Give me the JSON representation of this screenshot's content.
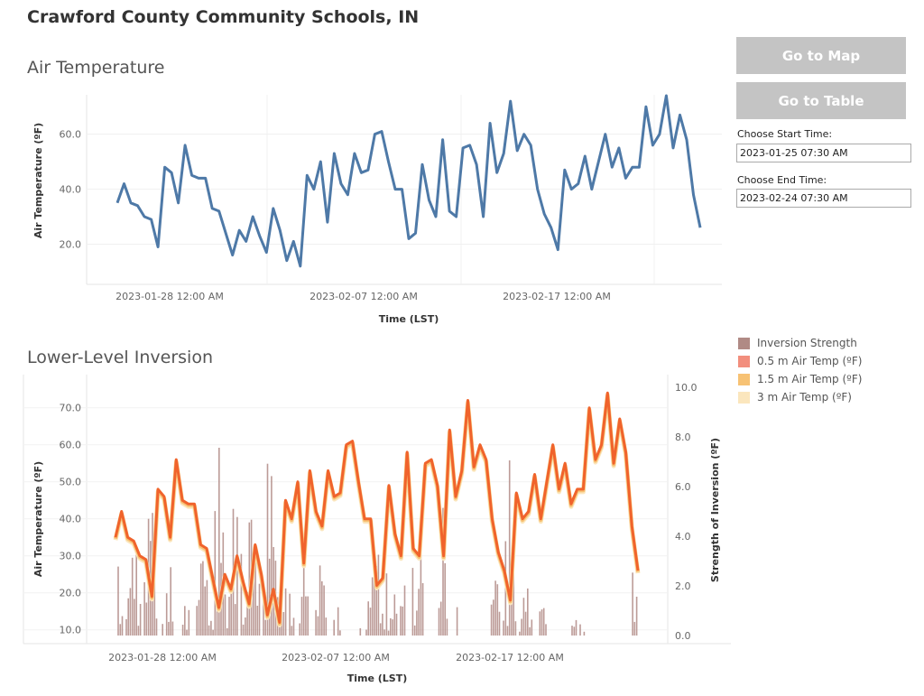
{
  "title": "Crawford County Community Schools, IN",
  "buttons": {
    "map": "Go to Map",
    "table": "Go to Table"
  },
  "controls": {
    "start_label": "Choose Start Time:",
    "start_value": "2023-01-25 07:30 AM",
    "end_label": "Choose End Time:",
    "end_value": "2023-02-24 07:30 AM"
  },
  "legend": {
    "items": [
      {
        "label": "Inversion Strength",
        "color": "#b08a85"
      },
      {
        "label": "0.5 m Air Temp (ºF)",
        "color": "#f28e7d"
      },
      {
        "label": "1.5 m Air Temp (ºF)",
        "color": "#f7c274"
      },
      {
        "label": "3 m Air Temp (ºF)",
        "color": "#fbe6bd"
      }
    ]
  },
  "chart_data": [
    {
      "type": "line",
      "title": "Air Temperature",
      "xlabel": "Time (LST)",
      "ylabel": "Air Temperature (ºF)",
      "x_ticks": [
        "2023-01-28 12:00 AM",
        "2023-02-07 12:00 AM",
        "2023-02-17 12:00 AM"
      ],
      "y_ticks": [
        "20.0",
        "40.0",
        "60.0"
      ],
      "xlim": [
        "2023-01-25",
        "2023-02-24"
      ],
      "ylim": [
        8,
        75
      ],
      "grid": true,
      "color": "#4e79a7",
      "series": [
        {
          "x": [
            "2023-01-25",
            "2023-01-25",
            "2023-01-25",
            "2023-01-26",
            "2023-01-26",
            "2023-01-27",
            "2023-01-27",
            "2023-01-27",
            "2023-01-27",
            "2023-01-28",
            "2023-01-28",
            "2023-01-28",
            "2023-01-29",
            "2023-01-29",
            "2023-01-29",
            "2023-01-30",
            "2023-01-30",
            "2023-01-30",
            "2023-01-31",
            "2023-01-31",
            "2023-02-01",
            "2023-02-01",
            "2023-02-01",
            "2023-02-02",
            "2023-02-02",
            "2023-02-02",
            "2023-02-03",
            "2023-02-03",
            "2023-02-03",
            "2023-02-04",
            "2023-02-04",
            "2023-02-04",
            "2023-02-05",
            "2023-02-05",
            "2023-02-05",
            "2023-02-06",
            "2023-02-06",
            "2023-02-06",
            "2023-02-07",
            "2023-02-07",
            "2023-02-08",
            "2023-02-08",
            "2023-02-08",
            "2023-02-09",
            "2023-02-09",
            "2023-02-09",
            "2023-02-10",
            "2023-02-10",
            "2023-02-10",
            "2023-02-11",
            "2023-02-11",
            "2023-02-11",
            "2023-02-12",
            "2023-02-12",
            "2023-02-13",
            "2023-02-13",
            "2023-02-13",
            "2023-02-14",
            "2023-02-14",
            "2023-02-14",
            "2023-02-15",
            "2023-02-15",
            "2023-02-15",
            "2023-02-16",
            "2023-02-16",
            "2023-02-17",
            "2023-02-17",
            "2023-02-17",
            "2023-02-18",
            "2023-02-18",
            "2023-02-18",
            "2023-02-19",
            "2023-02-19",
            "2023-02-19",
            "2023-02-20",
            "2023-02-20",
            "2023-02-20",
            "2023-02-21",
            "2023-02-21",
            "2023-02-21",
            "2023-02-22",
            "2023-02-22",
            "2023-02-22",
            "2023-02-23",
            "2023-02-23",
            "2023-02-23",
            "2023-02-24"
          ],
          "values": [
            35,
            42,
            35,
            34,
            30,
            29,
            19,
            48,
            46,
            35,
            56,
            45,
            44,
            44,
            33,
            32,
            24,
            16,
            25,
            21,
            30,
            23,
            17,
            33,
            25,
            14,
            21,
            12,
            45,
            40,
            50,
            28,
            53,
            42,
            38,
            53,
            46,
            47,
            60,
            61,
            50,
            40,
            40,
            22,
            24,
            49,
            36,
            30,
            58,
            32,
            30,
            55,
            56,
            49,
            30,
            64,
            46,
            53,
            72,
            54,
            60,
            56,
            40,
            31,
            26,
            18,
            47,
            40,
            42,
            52,
            40,
            50,
            60,
            48,
            55,
            44,
            48,
            48,
            70,
            56,
            60,
            74,
            55,
            67,
            58,
            38,
            26
          ]
        }
      ]
    },
    {
      "type": "line",
      "title": "Lower-Level Inversion",
      "xlabel": "Time (LST)",
      "ylabel": "Air Temperature (ºF)",
      "y2label": "Strength of Inversion (ºF)",
      "x_ticks": [
        "2023-01-28 12:00 AM",
        "2023-02-07 12:00 AM",
        "2023-02-17 12:00 AM"
      ],
      "y_ticks": [
        "10.0",
        "20.0",
        "30.0",
        "40.0",
        "50.0",
        "60.0",
        "70.0"
      ],
      "y2_ticks": [
        "0.0",
        "2.0",
        "4.0",
        "6.0",
        "8.0",
        "10.0"
      ],
      "xlim": [
        "2023-01-25",
        "2023-02-24"
      ],
      "ylim": [
        7,
        77
      ],
      "y2lim": [
        0,
        10.5
      ],
      "grid": true,
      "series": [
        {
          "name": "0.5 m Air Temp (ºF)",
          "color": "#e15759",
          "x": [
            "2023-01-25",
            "2023-01-25",
            "2023-01-25",
            "2023-01-26",
            "2023-01-26",
            "2023-01-27",
            "2023-01-27",
            "2023-01-27",
            "2023-01-27",
            "2023-01-28",
            "2023-01-28",
            "2023-01-28",
            "2023-01-29",
            "2023-01-29",
            "2023-01-29",
            "2023-01-30",
            "2023-01-30",
            "2023-01-30",
            "2023-01-31",
            "2023-01-31",
            "2023-02-01",
            "2023-02-01",
            "2023-02-01",
            "2023-02-02",
            "2023-02-02",
            "2023-02-02",
            "2023-02-03",
            "2023-02-03",
            "2023-02-03",
            "2023-02-04",
            "2023-02-04",
            "2023-02-04",
            "2023-02-05",
            "2023-02-05",
            "2023-02-05",
            "2023-02-06",
            "2023-02-06",
            "2023-02-06",
            "2023-02-07",
            "2023-02-07",
            "2023-02-08",
            "2023-02-08",
            "2023-02-08",
            "2023-02-09",
            "2023-02-09",
            "2023-02-09",
            "2023-02-10",
            "2023-02-10",
            "2023-02-10",
            "2023-02-11",
            "2023-02-11",
            "2023-02-11",
            "2023-02-12",
            "2023-02-12",
            "2023-02-13",
            "2023-02-13",
            "2023-02-13",
            "2023-02-14",
            "2023-02-14",
            "2023-02-14",
            "2023-02-15",
            "2023-02-15",
            "2023-02-15",
            "2023-02-16",
            "2023-02-16",
            "2023-02-17",
            "2023-02-17",
            "2023-02-17",
            "2023-02-18",
            "2023-02-18",
            "2023-02-18",
            "2023-02-19",
            "2023-02-19",
            "2023-02-19",
            "2023-02-20",
            "2023-02-20",
            "2023-02-20",
            "2023-02-21",
            "2023-02-21",
            "2023-02-21",
            "2023-02-22",
            "2023-02-22",
            "2023-02-22",
            "2023-02-23",
            "2023-02-23",
            "2023-02-23",
            "2023-02-24"
          ],
          "values": [
            35,
            42,
            35,
            34,
            30,
            29,
            19,
            48,
            46,
            35,
            56,
            45,
            44,
            44,
            33,
            32,
            24,
            16,
            25,
            21,
            30,
            23,
            17,
            33,
            25,
            14,
            21,
            12,
            45,
            40,
            50,
            28,
            53,
            42,
            38,
            53,
            46,
            47,
            60,
            61,
            50,
            40,
            40,
            22,
            24,
            49,
            36,
            30,
            58,
            32,
            30,
            55,
            56,
            49,
            30,
            64,
            46,
            53,
            72,
            54,
            60,
            56,
            40,
            31,
            26,
            18,
            47,
            40,
            42,
            52,
            40,
            50,
            60,
            48,
            55,
            44,
            48,
            48,
            70,
            56,
            60,
            74,
            55,
            67,
            58,
            38,
            26
          ]
        },
        {
          "name": "1.5 m Air Temp (ºF)",
          "color": "#f28e2b"
        },
        {
          "name": "3 m Air Temp (ºF)",
          "color": "#fbe6bd"
        },
        {
          "name": "Inversion Strength",
          "type": "bar",
          "color": "#b08a85",
          "note": "many narrow bars, max ~10.0 ºF"
        }
      ]
    }
  ]
}
